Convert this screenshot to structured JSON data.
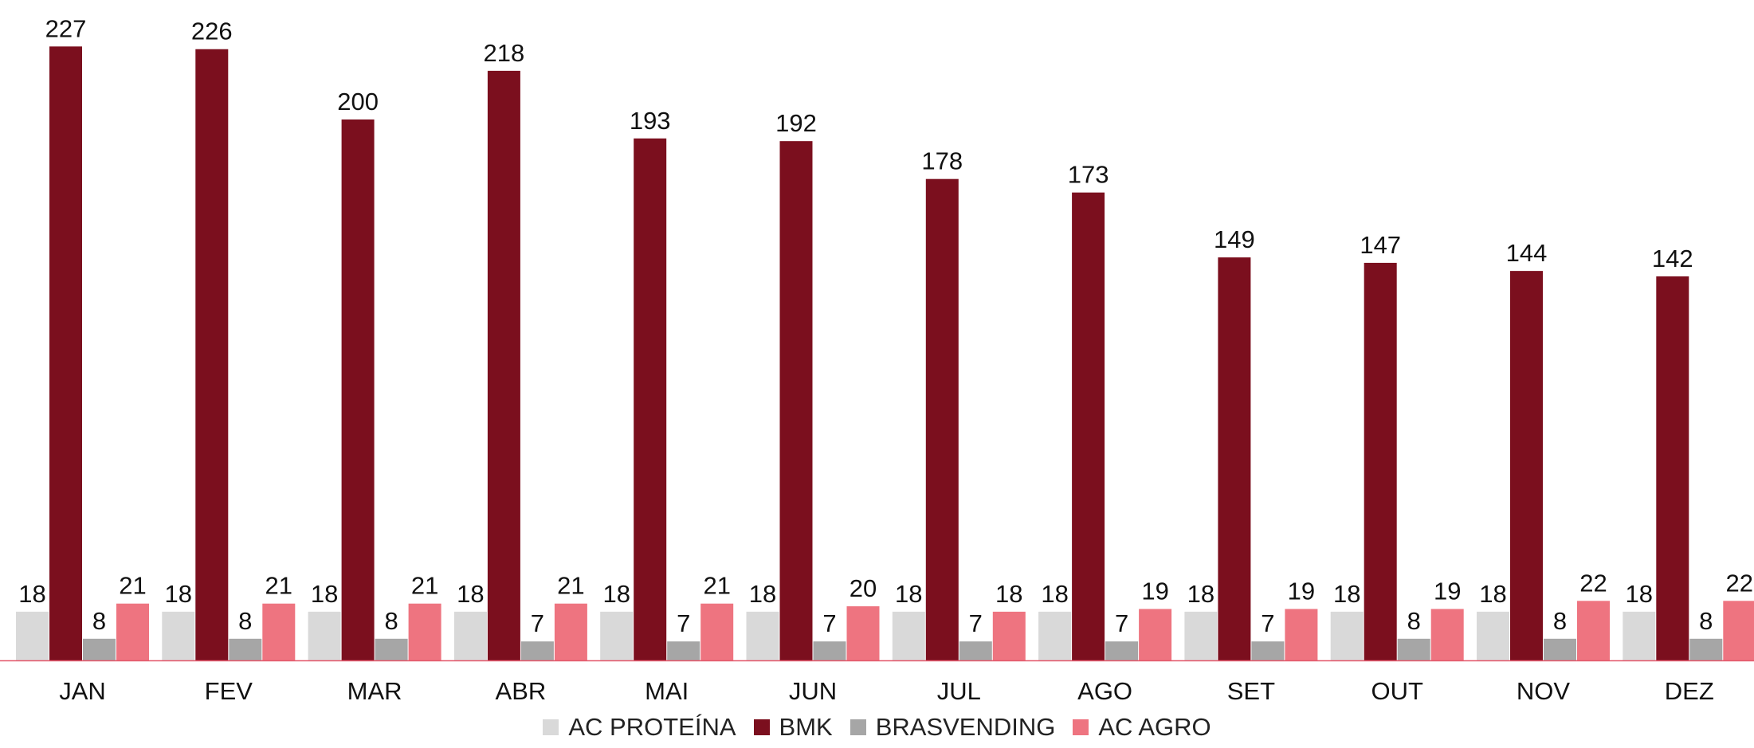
{
  "chart_data": {
    "type": "bar",
    "categories": [
      "JAN",
      "FEV",
      "MAR",
      "ABR",
      "MAI",
      "JUN",
      "JUL",
      "AGO",
      "SET",
      "OUT",
      "NOV",
      "DEZ"
    ],
    "series": [
      {
        "name": "AC PROTEÍNA",
        "color": "#d9d9d9",
        "values": [
          18,
          18,
          18,
          18,
          18,
          18,
          18,
          18,
          18,
          18,
          18,
          18
        ]
      },
      {
        "name": "BMK",
        "color": "#7b0f1e",
        "values": [
          227,
          226,
          200,
          218,
          193,
          192,
          178,
          173,
          149,
          147,
          144,
          142
        ]
      },
      {
        "name": "BRASVENDING",
        "color": "#a6a6a6",
        "values": [
          8,
          8,
          8,
          7,
          7,
          7,
          7,
          7,
          7,
          8,
          8,
          8
        ]
      },
      {
        "name": "AC AGRO",
        "color": "#ee7480",
        "values": [
          21,
          21,
          21,
          21,
          21,
          20,
          18,
          19,
          19,
          19,
          22,
          22
        ]
      }
    ],
    "title": "",
    "xlabel": "",
    "ylabel": "",
    "ylim": [
      0,
      240
    ],
    "grid": false,
    "data_labels": true,
    "legend_position": "bottom"
  }
}
